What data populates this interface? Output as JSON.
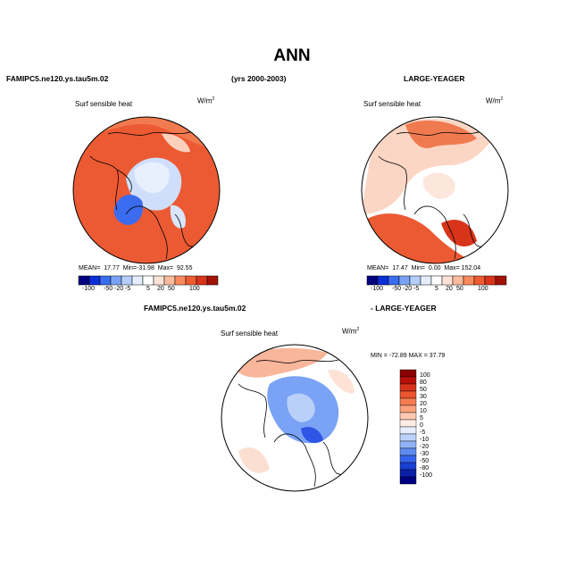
{
  "header": {
    "title": "ANN",
    "case1": "FAMIPC5.ne120.ys.tau5m.02",
    "years": "(yrs 2000-2003)",
    "case2": "LARGE-YEAGER",
    "diff_left": "FAMIPC5.ne120.ys.tau5m.02",
    "diff_right": "- LARGE-YEAGER"
  },
  "panels": [
    {
      "name": "case1",
      "variable": "Surf sensible heat",
      "units": "W/m",
      "units_exp": "2",
      "stats": {
        "mean_label": "MEAN=",
        "mean": "17.77",
        "min_label": "Min=",
        "min": "-31.98",
        "max_label": "Max=",
        "max": "92.55"
      },
      "colorbar_ticks": [
        "-100",
        "-50",
        "-20",
        "-5",
        "5",
        "20",
        "50",
        "100"
      ]
    },
    {
      "name": "case2",
      "variable": "Surf sensible heat",
      "units": "W/m",
      "units_exp": "2",
      "stats": {
        "mean_label": "MEAN=",
        "mean": "17.47",
        "min_label": "Min=",
        "min": "0.00",
        "max_label": "Max=",
        "max": "152.04"
      },
      "colorbar_ticks": [
        "-100",
        "-50",
        "-20",
        "-5",
        "5",
        "20",
        "50",
        "100"
      ]
    },
    {
      "name": "difference",
      "variable": "Surf sensible heat",
      "units": "W/m",
      "units_exp": "2",
      "stats_text": "MIN = -72.89  MAX =  37.79",
      "colorbar_ticks": [
        "100",
        "80",
        "50",
        "30",
        "20",
        "10",
        "5",
        "0",
        "-5",
        "-10",
        "-20",
        "-30",
        "-50",
        "-80",
        "-100"
      ]
    }
  ],
  "colors": {
    "abs_scale": [
      "#00007f",
      "#0a2fd6",
      "#3a6cf0",
      "#7aa2f5",
      "#b4cdfa",
      "#e4edfd",
      "#ffffff",
      "#fde3d6",
      "#fbbb9c",
      "#f88a5c",
      "#ee5a32",
      "#d8341a",
      "#a31208"
    ],
    "diff_scale": [
      "#8b0000",
      "#b80f0a",
      "#d8331a",
      "#ec5630",
      "#f77c52",
      "#fba27c",
      "#fdc9b0",
      "#fdeee5",
      "#e6eefd",
      "#bcd2fb",
      "#8fb2f7",
      "#5f8cf2",
      "#3563ea",
      "#1a3fd2",
      "#0a1fa8",
      "#000080"
    ],
    "warm": "#ee5a32",
    "cool": "#7aa2f5",
    "land_line": "#000000"
  }
}
